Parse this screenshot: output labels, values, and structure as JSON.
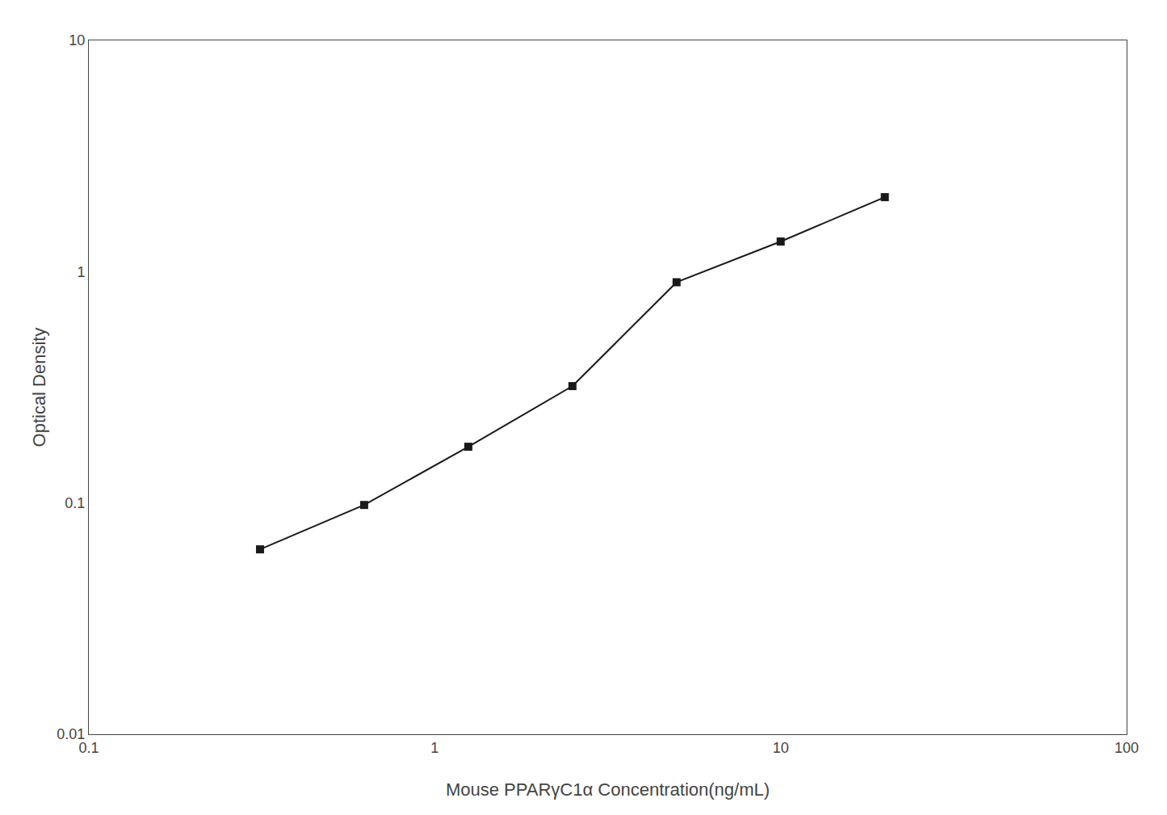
{
  "chart_data": {
    "type": "line",
    "xlabel": "Mouse PPARγC1α Concentration(ng/mL)",
    "ylabel": "Optical Density",
    "x": [
      0.3125,
      0.625,
      1.25,
      2.5,
      5,
      10,
      20
    ],
    "values": [
      0.063,
      0.098,
      0.175,
      0.32,
      0.9,
      1.35,
      2.1
    ],
    "color": "#1a1a1a",
    "marker": "square",
    "line_style": "solid",
    "log": true,
    "grid": false,
    "xlim": [
      0.1,
      100
    ],
    "ylim": [
      0.01,
      10
    ],
    "xticks": [
      0.1,
      1,
      10,
      100
    ],
    "yticks": [
      0.01,
      0.1,
      1,
      10
    ]
  }
}
